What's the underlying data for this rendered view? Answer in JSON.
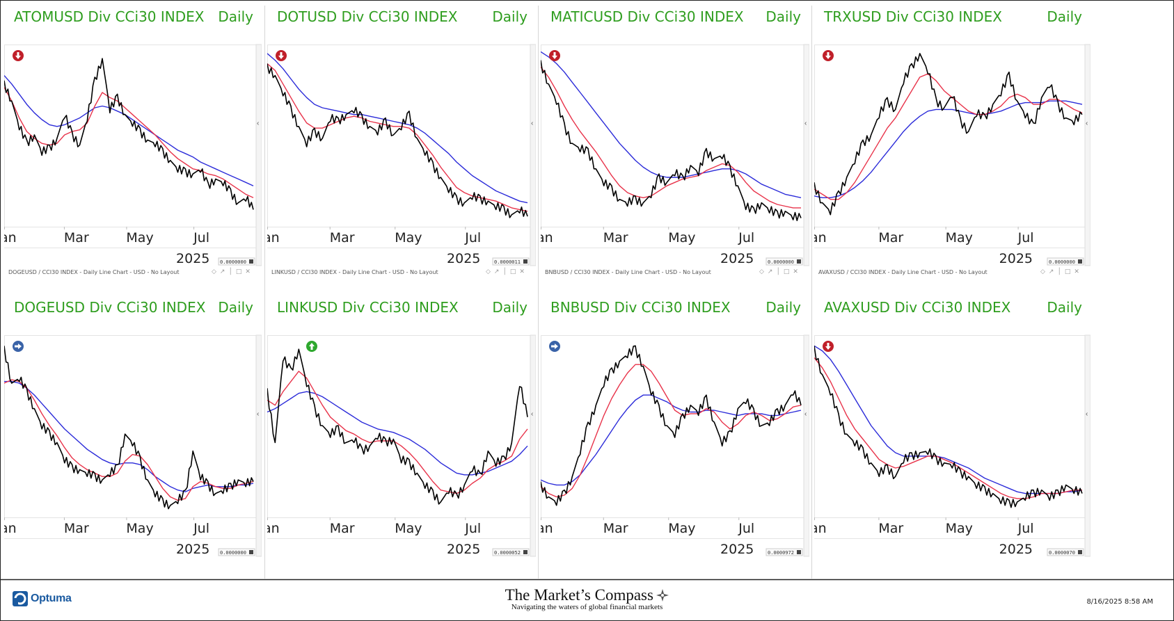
{
  "footer": {
    "logo_text": "Optuma",
    "title": "The Market’s Compass",
    "subtitle": "Navigating the waters of global financial markets",
    "datetime": "8/16/2025 8:58 AM"
  },
  "colors": {
    "title_green": "#2e9d1e",
    "price_line": "#000000",
    "fast_ma": "#e8334a",
    "slow_ma": "#2b2bd9",
    "signal_down": "#c0202a",
    "signal_up": "#2ea82e",
    "signal_neutral": "#3a63a8"
  },
  "chart_data": [
    {
      "type": "line",
      "title": "ATOMUSD Div CCi30 INDEX",
      "period": "Daily",
      "signal": "down",
      "x_ticks": [
        "an",
        "Mar",
        "May",
        "Jul"
      ],
      "year_label": "2025",
      "value_box": "0.0000000",
      "caption": "DOGEUSD / CCI30 INDEX - Daily Line Chart - USD - No Layout",
      "series": [
        {
          "role": "price",
          "values": [
            0.8,
            0.7,
            0.55,
            0.45,
            0.5,
            0.4,
            0.42,
            0.48,
            0.62,
            0.5,
            0.44,
            0.6,
            0.82,
            0.95,
            0.65,
            0.72,
            0.62,
            0.57,
            0.52,
            0.47,
            0.45,
            0.4,
            0.35,
            0.3,
            0.28,
            0.27,
            0.3,
            0.2,
            0.24,
            0.22,
            0.16,
            0.1,
            0.13,
            0.06
          ]
        },
        {
          "role": "fast_ma",
          "values": [
            0.78,
            0.7,
            0.6,
            0.52,
            0.48,
            0.45,
            0.44,
            0.45,
            0.5,
            0.52,
            0.53,
            0.57,
            0.67,
            0.75,
            0.72,
            0.7,
            0.66,
            0.62,
            0.58,
            0.54,
            0.5,
            0.45,
            0.4,
            0.36,
            0.33,
            0.3,
            0.29,
            0.27,
            0.26,
            0.24,
            0.21,
            0.18,
            0.15,
            0.13
          ]
        },
        {
          "role": "slow_ma",
          "values": [
            0.85,
            0.8,
            0.74,
            0.68,
            0.63,
            0.59,
            0.56,
            0.55,
            0.56,
            0.58,
            0.6,
            0.63,
            0.66,
            0.67,
            0.66,
            0.64,
            0.62,
            0.59,
            0.56,
            0.53,
            0.5,
            0.47,
            0.44,
            0.41,
            0.39,
            0.37,
            0.34,
            0.32,
            0.3,
            0.28,
            0.26,
            0.24,
            0.22,
            0.2
          ]
        }
      ]
    },
    {
      "type": "line",
      "title": "DOTUSD Div CCi30 INDEX",
      "period": "Daily",
      "signal": "down",
      "x_ticks": [
        "an",
        "Mar",
        "May",
        "Jul"
      ],
      "year_label": "2025",
      "value_box": "0.0000011",
      "caption": "LINKUSD / CCI30 INDEX - Daily Line Chart - USD - No Layout",
      "series": [
        {
          "role": "price",
          "values": [
            0.9,
            0.85,
            0.75,
            0.65,
            0.55,
            0.45,
            0.52,
            0.48,
            0.6,
            0.58,
            0.62,
            0.65,
            0.6,
            0.55,
            0.52,
            0.58,
            0.5,
            0.55,
            0.62,
            0.48,
            0.4,
            0.32,
            0.25,
            0.18,
            0.12,
            0.1,
            0.14,
            0.12,
            0.11,
            0.08,
            0.06,
            0.03,
            0.06,
            0.02
          ]
        },
        {
          "role": "fast_ma",
          "values": [
            0.92,
            0.88,
            0.8,
            0.72,
            0.64,
            0.57,
            0.54,
            0.54,
            0.56,
            0.58,
            0.6,
            0.61,
            0.6,
            0.58,
            0.57,
            0.56,
            0.55,
            0.55,
            0.54,
            0.5,
            0.44,
            0.38,
            0.31,
            0.25,
            0.19,
            0.16,
            0.14,
            0.13,
            0.12,
            0.11,
            0.09,
            0.07,
            0.06,
            0.05
          ]
        },
        {
          "role": "slow_ma",
          "values": [
            0.98,
            0.94,
            0.89,
            0.83,
            0.77,
            0.72,
            0.68,
            0.66,
            0.65,
            0.64,
            0.63,
            0.62,
            0.62,
            0.61,
            0.6,
            0.59,
            0.58,
            0.57,
            0.56,
            0.54,
            0.51,
            0.47,
            0.43,
            0.39,
            0.34,
            0.3,
            0.26,
            0.23,
            0.2,
            0.17,
            0.15,
            0.13,
            0.11,
            0.1
          ]
        }
      ]
    },
    {
      "type": "line",
      "title": "MATICUSD Div CCi30 INDEX",
      "period": "Daily",
      "signal": "down",
      "x_ticks": [
        "an",
        "Mar",
        "May",
        "Jul"
      ],
      "year_label": "2025",
      "value_box": "0.0000000",
      "caption": "BNBUSD / CCI30 INDEX - Daily Line Chart - USD - No Layout",
      "series": [
        {
          "role": "price",
          "values": [
            0.92,
            0.8,
            0.7,
            0.55,
            0.45,
            0.42,
            0.4,
            0.3,
            0.22,
            0.18,
            0.12,
            0.1,
            0.12,
            0.1,
            0.15,
            0.25,
            0.22,
            0.28,
            0.24,
            0.32,
            0.28,
            0.4,
            0.36,
            0.38,
            0.3,
            0.2,
            0.08,
            0.05,
            0.1,
            0.06,
            0.03,
            0.05,
            0.02,
            0.01
          ]
        },
        {
          "role": "fast_ma",
          "values": [
            0.9,
            0.84,
            0.76,
            0.67,
            0.59,
            0.52,
            0.46,
            0.4,
            0.33,
            0.26,
            0.2,
            0.16,
            0.14,
            0.13,
            0.14,
            0.17,
            0.2,
            0.22,
            0.24,
            0.25,
            0.26,
            0.29,
            0.31,
            0.33,
            0.32,
            0.28,
            0.22,
            0.17,
            0.14,
            0.11,
            0.09,
            0.08,
            0.07,
            0.07
          ]
        },
        {
          "role": "slow_ma",
          "values": [
            0.99,
            0.96,
            0.92,
            0.87,
            0.81,
            0.75,
            0.69,
            0.63,
            0.57,
            0.51,
            0.45,
            0.4,
            0.35,
            0.31,
            0.28,
            0.26,
            0.25,
            0.25,
            0.25,
            0.26,
            0.27,
            0.28,
            0.29,
            0.3,
            0.3,
            0.29,
            0.27,
            0.24,
            0.21,
            0.19,
            0.17,
            0.15,
            0.14,
            0.13
          ]
        }
      ]
    },
    {
      "type": "line",
      "title": "TRXUSD Div CCi30 INDEX",
      "period": "Daily",
      "signal": "down",
      "x_ticks": [
        "an",
        "Mar",
        "May",
        "Jul"
      ],
      "year_label": "2025",
      "value_box": "0.0000000",
      "caption": "AVAXUSD / CCI30 INDEX - Daily Line Chart - USD - No Layout",
      "series": [
        {
          "role": "price",
          "values": [
            0.2,
            0.1,
            0.05,
            0.15,
            0.25,
            0.35,
            0.45,
            0.5,
            0.62,
            0.7,
            0.65,
            0.82,
            0.9,
            0.98,
            0.88,
            0.7,
            0.66,
            0.74,
            0.58,
            0.52,
            0.63,
            0.6,
            0.68,
            0.75,
            0.85,
            0.7,
            0.62,
            0.55,
            0.72,
            0.8,
            0.68,
            0.6,
            0.58,
            0.62
          ]
        },
        {
          "role": "fast_ma",
          "values": [
            0.18,
            0.15,
            0.12,
            0.12,
            0.16,
            0.22,
            0.3,
            0.38,
            0.46,
            0.54,
            0.6,
            0.68,
            0.76,
            0.84,
            0.86,
            0.82,
            0.76,
            0.72,
            0.68,
            0.64,
            0.62,
            0.62,
            0.64,
            0.67,
            0.72,
            0.74,
            0.72,
            0.68,
            0.68,
            0.71,
            0.71,
            0.68,
            0.65,
            0.63
          ]
        },
        {
          "role": "slow_ma",
          "values": [
            0.14,
            0.13,
            0.13,
            0.14,
            0.16,
            0.19,
            0.23,
            0.28,
            0.34,
            0.4,
            0.46,
            0.52,
            0.57,
            0.61,
            0.64,
            0.65,
            0.65,
            0.65,
            0.64,
            0.63,
            0.62,
            0.62,
            0.63,
            0.64,
            0.66,
            0.68,
            0.69,
            0.69,
            0.69,
            0.7,
            0.7,
            0.7,
            0.69,
            0.68
          ]
        }
      ]
    },
    {
      "type": "line",
      "title": "DOGEUSD Div CCi30 INDEX",
      "period": "Daily",
      "signal": "neutral",
      "x_ticks": [
        "an",
        "Mar",
        "May",
        "Jul"
      ],
      "year_label": "2025",
      "value_box": "0.0000000",
      "caption": "",
      "series": [
        {
          "role": "price",
          "values": [
            0.95,
            0.75,
            0.78,
            0.7,
            0.6,
            0.5,
            0.45,
            0.4,
            0.3,
            0.25,
            0.24,
            0.22,
            0.2,
            0.18,
            0.22,
            0.25,
            0.45,
            0.4,
            0.3,
            0.18,
            0.1,
            0.05,
            0.03,
            0.06,
            0.1,
            0.35,
            0.2,
            0.15,
            0.1,
            0.12,
            0.14,
            0.18,
            0.16,
            0.17
          ]
        },
        {
          "role": "fast_ma",
          "values": [
            0.75,
            0.77,
            0.76,
            0.72,
            0.65,
            0.57,
            0.5,
            0.44,
            0.37,
            0.31,
            0.27,
            0.24,
            0.22,
            0.2,
            0.2,
            0.22,
            0.29,
            0.33,
            0.32,
            0.27,
            0.2,
            0.13,
            0.08,
            0.06,
            0.07,
            0.14,
            0.17,
            0.16,
            0.14,
            0.13,
            0.13,
            0.15,
            0.16,
            0.17
          ]
        },
        {
          "role": "slow_ma",
          "values": [
            0.76,
            0.76,
            0.75,
            0.72,
            0.68,
            0.63,
            0.58,
            0.53,
            0.48,
            0.44,
            0.4,
            0.36,
            0.33,
            0.3,
            0.28,
            0.27,
            0.28,
            0.28,
            0.27,
            0.24,
            0.2,
            0.17,
            0.14,
            0.12,
            0.11,
            0.13,
            0.14,
            0.15,
            0.14,
            0.14,
            0.14,
            0.15,
            0.15,
            0.16
          ]
        }
      ]
    },
    {
      "type": "line",
      "title": "LINKUSD Div CCi30 INDEX",
      "period": "Daily",
      "signal": "up",
      "x_ticks": [
        "an",
        "Mar",
        "May",
        "Jul"
      ],
      "year_label": "2025",
      "value_box": "0.0000052",
      "caption": "",
      "series": [
        {
          "role": "price",
          "values": [
            0.7,
            0.4,
            0.9,
            0.82,
            0.95,
            0.75,
            0.6,
            0.5,
            0.45,
            0.48,
            0.4,
            0.42,
            0.35,
            0.38,
            0.44,
            0.4,
            0.42,
            0.3,
            0.28,
            0.22,
            0.15,
            0.1,
            0.05,
            0.12,
            0.08,
            0.15,
            0.25,
            0.2,
            0.35,
            0.28,
            0.3,
            0.4,
            0.75,
            0.55
          ]
        },
        {
          "role": "fast_ma",
          "values": [
            0.65,
            0.62,
            0.7,
            0.76,
            0.82,
            0.78,
            0.7,
            0.62,
            0.55,
            0.51,
            0.47,
            0.45,
            0.42,
            0.4,
            0.41,
            0.41,
            0.41,
            0.38,
            0.34,
            0.29,
            0.23,
            0.17,
            0.12,
            0.11,
            0.1,
            0.12,
            0.16,
            0.19,
            0.24,
            0.27,
            0.29,
            0.32,
            0.42,
            0.48
          ]
        },
        {
          "role": "slow_ma",
          "values": [
            0.58,
            0.6,
            0.63,
            0.66,
            0.69,
            0.7,
            0.69,
            0.67,
            0.64,
            0.61,
            0.58,
            0.55,
            0.52,
            0.5,
            0.48,
            0.47,
            0.46,
            0.44,
            0.42,
            0.39,
            0.36,
            0.32,
            0.28,
            0.25,
            0.22,
            0.21,
            0.21,
            0.22,
            0.23,
            0.25,
            0.27,
            0.29,
            0.33,
            0.38
          ]
        }
      ]
    },
    {
      "type": "line",
      "title": "BNBUSD Div CCi30 INDEX",
      "period": "Daily",
      "signal": "neutral",
      "x_ticks": [
        "an",
        "Mar",
        "May",
        "Jul"
      ],
      "year_label": "2025",
      "value_box": "0.0000972",
      "caption": "",
      "series": [
        {
          "role": "price",
          "values": [
            0.15,
            0.08,
            0.05,
            0.1,
            0.2,
            0.35,
            0.5,
            0.62,
            0.75,
            0.82,
            0.88,
            0.92,
            0.95,
            0.85,
            0.7,
            0.6,
            0.5,
            0.45,
            0.55,
            0.62,
            0.58,
            0.66,
            0.52,
            0.4,
            0.45,
            0.6,
            0.65,
            0.58,
            0.5,
            0.52,
            0.58,
            0.62,
            0.7,
            0.62
          ]
        },
        {
          "role": "fast_ma",
          "values": [
            0.14,
            0.1,
            0.08,
            0.09,
            0.13,
            0.21,
            0.32,
            0.44,
            0.56,
            0.66,
            0.74,
            0.81,
            0.86,
            0.86,
            0.82,
            0.75,
            0.67,
            0.59,
            0.56,
            0.57,
            0.57,
            0.6,
            0.58,
            0.52,
            0.48,
            0.51,
            0.56,
            0.58,
            0.56,
            0.53,
            0.54,
            0.57,
            0.61,
            0.62
          ]
        },
        {
          "role": "slow_ma",
          "values": [
            0.18,
            0.16,
            0.15,
            0.15,
            0.17,
            0.21,
            0.27,
            0.33,
            0.4,
            0.47,
            0.54,
            0.6,
            0.65,
            0.68,
            0.68,
            0.66,
            0.64,
            0.61,
            0.59,
            0.58,
            0.58,
            0.59,
            0.59,
            0.58,
            0.57,
            0.56,
            0.57,
            0.57,
            0.57,
            0.56,
            0.56,
            0.57,
            0.58,
            0.59
          ]
        }
      ]
    },
    {
      "type": "line",
      "title": "AVAXUSD Div CCi30 INDEX",
      "period": "Daily",
      "signal": "down",
      "x_ticks": [
        "an",
        "Mar",
        "May",
        "Jul"
      ],
      "year_label": "2025",
      "value_box": "0.0000070",
      "caption": "",
      "series": [
        {
          "role": "price",
          "values": [
            0.95,
            0.8,
            0.7,
            0.55,
            0.45,
            0.4,
            0.35,
            0.28,
            0.22,
            0.25,
            0.2,
            0.3,
            0.32,
            0.34,
            0.35,
            0.3,
            0.28,
            0.27,
            0.22,
            0.2,
            0.15,
            0.12,
            0.1,
            0.06,
            0.04,
            0.05,
            0.08,
            0.1,
            0.12,
            0.08,
            0.1,
            0.15,
            0.12,
            0.1
          ]
        },
        {
          "role": "fast_ma",
          "values": [
            0.9,
            0.84,
            0.76,
            0.66,
            0.56,
            0.48,
            0.42,
            0.36,
            0.3,
            0.27,
            0.25,
            0.26,
            0.28,
            0.3,
            0.32,
            0.32,
            0.3,
            0.28,
            0.25,
            0.22,
            0.19,
            0.16,
            0.13,
            0.1,
            0.08,
            0.07,
            0.07,
            0.08,
            0.1,
            0.1,
            0.1,
            0.11,
            0.12,
            0.12
          ]
        },
        {
          "role": "slow_ma",
          "values": [
            0.97,
            0.94,
            0.89,
            0.82,
            0.74,
            0.66,
            0.58,
            0.5,
            0.44,
            0.38,
            0.34,
            0.32,
            0.32,
            0.32,
            0.32,
            0.32,
            0.31,
            0.29,
            0.27,
            0.25,
            0.22,
            0.19,
            0.17,
            0.15,
            0.13,
            0.11,
            0.1,
            0.1,
            0.1,
            0.1,
            0.1,
            0.11,
            0.11,
            0.12
          ]
        }
      ]
    }
  ]
}
